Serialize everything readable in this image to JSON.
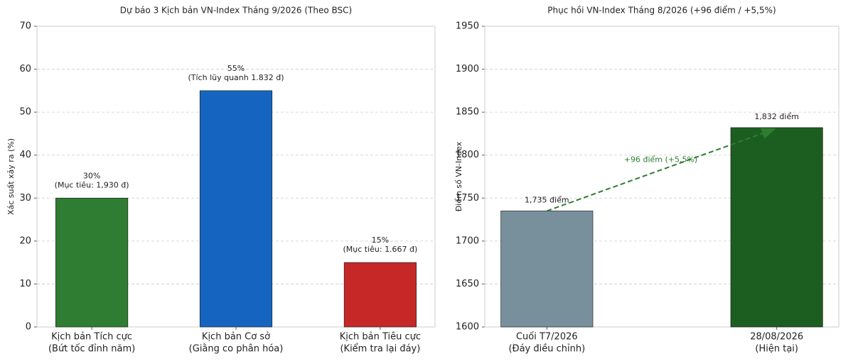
{
  "chart_data": [
    {
      "type": "bar",
      "title": "Dự báo 3 Kịch bản VN-Index Tháng 9/2026 (Theo BSC)",
      "ylabel": "Xác suất xảy ra (%)",
      "categories": [
        "Kịch bản Tích cực",
        "Kịch bản Cơ sở",
        "Kịch bản Tiêu cực"
      ],
      "category_subtitles": [
        "(Bứt tốc đỉnh năm)",
        "(Giằng co phân hóa)",
        "(Kiểm tra lại đáy)"
      ],
      "values": [
        30,
        55,
        15
      ],
      "value_labels": [
        "30%",
        "55%",
        "15%"
      ],
      "annotations": [
        "(Mục tiêu: 1,930 đ)",
        "(Tích lũy quanh 1.832 đ)",
        "(Mục tiêu: 1.667 đ)"
      ],
      "colors": [
        "#2e7d32",
        "#1565c0",
        "#c62828"
      ],
      "ylim": [
        0,
        70
      ],
      "yticks": [
        0,
        10,
        20,
        30,
        40,
        50,
        60,
        70
      ],
      "grid": true
    },
    {
      "type": "bar",
      "title": "Phục hồi VN-Index Tháng 8/2026 (+96 điểm / +5,5%)",
      "ylabel": "Điểm số VN-Index",
      "categories": [
        "Cuối T7/2026",
        "28/08/2026"
      ],
      "category_subtitles": [
        "(Đáy điều chỉnh)",
        "(Hiện tại)"
      ],
      "values": [
        1735,
        1832
      ],
      "value_labels": [
        "1,735 điểm",
        "1,832 điểm"
      ],
      "arrow_label": "+96 điểm (+5,5%)",
      "colors": [
        "#78909c",
        "#1b5e20"
      ],
      "ylim": [
        1600,
        1950
      ],
      "yticks": [
        1600,
        1650,
        1700,
        1750,
        1800,
        1850,
        1900,
        1950
      ],
      "grid": true
    }
  ]
}
